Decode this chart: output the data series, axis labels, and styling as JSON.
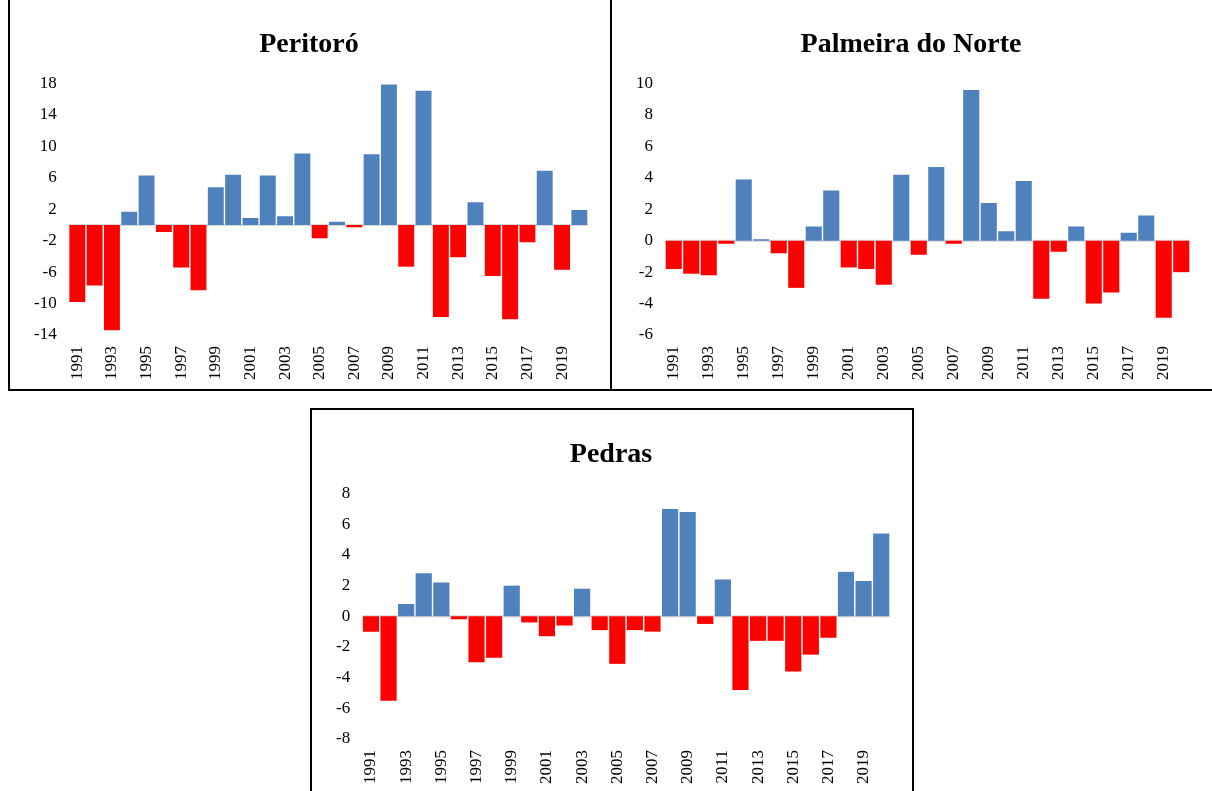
{
  "chart_data": [
    {
      "type": "bar",
      "title": "Peritoró",
      "categories": [
        "1991",
        null,
        "1993",
        null,
        "1995",
        null,
        "1997",
        null,
        "1999",
        null,
        "2001",
        null,
        "2003",
        null,
        "2005",
        null,
        "2007",
        null,
        "2009",
        null,
        "2011",
        null,
        "2013",
        null,
        "2015",
        null,
        "2017",
        null,
        "2019",
        null
      ],
      "values": [
        -9.8,
        -7.7,
        -13.4,
        1.7,
        6.3,
        -0.9,
        -5.4,
        -8.3,
        4.8,
        6.4,
        0.9,
        6.3,
        1.1,
        9.1,
        -1.7,
        0.4,
        -0.3,
        9.0,
        17.9,
        -5.3,
        17.1,
        -11.7,
        -4.1,
        2.9,
        -6.5,
        -12.0,
        -2.2,
        6.9,
        -5.7,
        1.9
      ],
      "colors": [
        "#ff0000",
        "#ff0000",
        "#ff0000",
        "#4f81bd",
        "#4f81bd",
        "#ff0000",
        "#ff0000",
        "#ff0000",
        "#4f81bd",
        "#4f81bd",
        "#4f81bd",
        "#4f81bd",
        "#4f81bd",
        "#4f81bd",
        "#ff0000",
        "#4f81bd",
        "#ff0000",
        "#4f81bd",
        "#4f81bd",
        "#ff0000",
        "#4f81bd",
        "#ff0000",
        "#ff0000",
        "#4f81bd",
        "#ff0000",
        "#ff0000",
        "#ff0000",
        "#4f81bd",
        "#ff0000",
        "#4f81bd"
      ],
      "ylim": [
        -14,
        18
      ],
      "yticks": [
        -14,
        -10,
        -6,
        -2,
        2,
        6,
        10,
        14,
        18
      ],
      "ref_lines": [
        {
          "axis": "y",
          "value": 0,
          "color": "#d9d9d9"
        }
      ],
      "grid": false,
      "legend": false
    },
    {
      "type": "bar",
      "title": "Palmeira do Norte",
      "categories": [
        "1991",
        null,
        "1993",
        null,
        "1995",
        null,
        "1997",
        null,
        "1999",
        null,
        "2001",
        null,
        "2003",
        null,
        "2005",
        null,
        "2007",
        null,
        "2009",
        null,
        "2011",
        null,
        "2013",
        null,
        "2015",
        null,
        "2017",
        null,
        "2019",
        null
      ],
      "values": [
        -1.8,
        -2.1,
        -2.2,
        -0.2,
        3.9,
        0.1,
        -0.8,
        -3.0,
        0.9,
        3.2,
        -1.7,
        -1.8,
        -2.8,
        4.2,
        -0.9,
        4.7,
        -0.2,
        9.6,
        2.4,
        0.6,
        3.8,
        -3.7,
        -0.7,
        0.9,
        -4.0,
        -3.3,
        0.5,
        1.6,
        -4.9,
        -2.0
      ],
      "colors": [
        "#ff0000",
        "#ff0000",
        "#ff0000",
        "#ff0000",
        "#4f81bd",
        "#4f81bd",
        "#ff0000",
        "#ff0000",
        "#4f81bd",
        "#4f81bd",
        "#ff0000",
        "#ff0000",
        "#ff0000",
        "#4f81bd",
        "#ff0000",
        "#4f81bd",
        "#ff0000",
        "#4f81bd",
        "#4f81bd",
        "#4f81bd",
        "#4f81bd",
        "#ff0000",
        "#ff0000",
        "#4f81bd",
        "#ff0000",
        "#ff0000",
        "#4f81bd",
        "#4f81bd",
        "#ff0000",
        "#ff0000"
      ],
      "ylim": [
        -6,
        10
      ],
      "yticks": [
        -6,
        -4,
        -2,
        0,
        2,
        4,
        6,
        8,
        10
      ],
      "ref_lines": [
        {
          "axis": "y",
          "value": 0,
          "color": "#d9d9d9"
        }
      ],
      "grid": false,
      "legend": false
    },
    {
      "type": "bar",
      "title": "Pedras",
      "categories": [
        "1991",
        null,
        "1993",
        null,
        "1995",
        null,
        "1997",
        null,
        "1999",
        null,
        "2001",
        null,
        "2003",
        null,
        "2005",
        null,
        "2007",
        null,
        "2009",
        null,
        "2011",
        null,
        "2013",
        null,
        "2015",
        null,
        "2017",
        null,
        "2019",
        null
      ],
      "values": [
        -1.0,
        -5.5,
        0.8,
        2.8,
        2.2,
        -0.2,
        -3.0,
        -2.7,
        2.0,
        -0.4,
        -1.3,
        -0.6,
        1.8,
        -0.9,
        -3.1,
        -0.9,
        -1.0,
        7.0,
        6.8,
        -0.5,
        2.4,
        -4.8,
        -1.6,
        -1.6,
        -3.6,
        -2.5,
        -1.4,
        2.9,
        2.3,
        5.4
      ],
      "colors": [
        "#ff0000",
        "#ff0000",
        "#4f81bd",
        "#4f81bd",
        "#4f81bd",
        "#ff0000",
        "#ff0000",
        "#ff0000",
        "#4f81bd",
        "#ff0000",
        "#ff0000",
        "#ff0000",
        "#4f81bd",
        "#ff0000",
        "#ff0000",
        "#ff0000",
        "#ff0000",
        "#4f81bd",
        "#4f81bd",
        "#ff0000",
        "#4f81bd",
        "#ff0000",
        "#ff0000",
        "#ff0000",
        "#ff0000",
        "#ff0000",
        "#ff0000",
        "#4f81bd",
        "#4f81bd",
        "#4f81bd"
      ],
      "ylim": [
        -8,
        8
      ],
      "yticks": [
        -8,
        -6,
        -4,
        -2,
        0,
        2,
        4,
        6,
        8
      ],
      "ref_lines": [
        {
          "axis": "y",
          "value": 0,
          "color": "#d9d9d9"
        }
      ],
      "grid": false,
      "legend": false
    }
  ]
}
